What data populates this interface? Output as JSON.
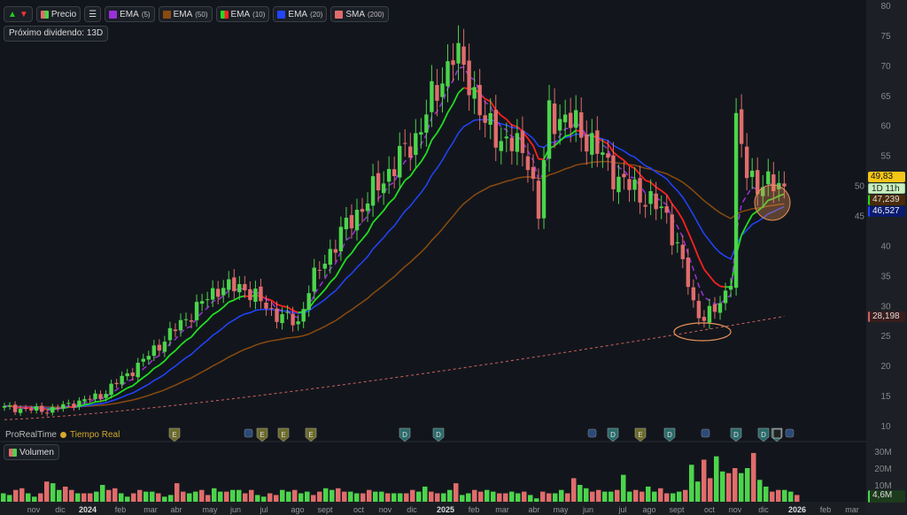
{
  "toolbar": {
    "precio": "Precio",
    "ema5": "EMA",
    "ema5_p": "(5)",
    "ema50": "EMA",
    "ema50_p": "(50)",
    "ema10": "EMA",
    "ema10_p": "(10)",
    "ema20": "EMA",
    "ema20_p": "(20)",
    "sma200": "SMA",
    "sma200_p": "(200)"
  },
  "dividend_badge": "Próximo dividendo: 13D",
  "provider": "ProRealTime",
  "realtime": "Tiempo Real",
  "volume_label": "Volumen",
  "price_tags": {
    "last": "49,83",
    "countdown": "1D 11h",
    "ema50": "47,239",
    "ema20": "46,527",
    "sma200": "28,198",
    "volume": "4,6M"
  },
  "colors": {
    "up": "#4cd44c",
    "down": "#e06c6c",
    "ema5": "#9b30d9",
    "ema10_up": "#22dd22",
    "ema10_down": "#ff2020",
    "ema20": "#2244ff",
    "ema50": "#8a4a10",
    "sma200": "#d06060"
  },
  "event_markers": [
    "E",
    "E",
    "D",
    "D",
    "E",
    "E",
    "D",
    "E",
    "D",
    "D",
    "D",
    "D",
    "D",
    "I"
  ],
  "chart_data": {
    "type": "candlestick",
    "y_axis": {
      "ticks": [
        80,
        75,
        70,
        65,
        60,
        55,
        50,
        45,
        40,
        35,
        30,
        25,
        20,
        15,
        10
      ],
      "range": [
        10,
        80
      ]
    },
    "volume_axis": {
      "ticks": [
        "30M",
        "20M",
        "10M"
      ],
      "range": [
        0,
        35
      ]
    },
    "x_ticks": [
      "nov",
      "dic",
      "2024",
      "feb",
      "mar",
      "abr",
      "may",
      "jun",
      "jul",
      "ago",
      "sept",
      "oct",
      "nov",
      "dic",
      "2025",
      "feb",
      "mar",
      "abr",
      "may",
      "jun",
      "jul",
      "ago",
      "sept",
      "oct",
      "nov",
      "dic",
      "2026",
      "feb",
      "mar"
    ],
    "price_anchors": [
      [
        0,
        13
      ],
      [
        8,
        12.5
      ],
      [
        18,
        15
      ],
      [
        25,
        20
      ],
      [
        33,
        27
      ],
      [
        40,
        33
      ],
      [
        45,
        33
      ],
      [
        50,
        29
      ],
      [
        55,
        27
      ],
      [
        57,
        33
      ],
      [
        63,
        42
      ],
      [
        70,
        50
      ],
      [
        77,
        58
      ],
      [
        82,
        68
      ],
      [
        84,
        72
      ],
      [
        87,
        68
      ],
      [
        90,
        60
      ],
      [
        93,
        58
      ],
      [
        98,
        55
      ],
      [
        100,
        45
      ],
      [
        102,
        62
      ],
      [
        107,
        60
      ],
      [
        110,
        57
      ],
      [
        115,
        51
      ],
      [
        120,
        48
      ],
      [
        124,
        45
      ],
      [
        127,
        37
      ],
      [
        129,
        30
      ],
      [
        131,
        28
      ],
      [
        134,
        30
      ],
      [
        136,
        35
      ],
      [
        137,
        60
      ],
      [
        139,
        52
      ],
      [
        142,
        50
      ],
      [
        144,
        50
      ],
      [
        146,
        49.83
      ]
    ],
    "sma200_range": [
      11,
      28.198
    ],
    "volume_millions": [
      5,
      4,
      7,
      8,
      5,
      3,
      5,
      12,
      11,
      7,
      9,
      7,
      5,
      5,
      5,
      6,
      10,
      7,
      8,
      5,
      3,
      5,
      7,
      6,
      6,
      5,
      3,
      4,
      11,
      6,
      5,
      6,
      7,
      4,
      8,
      6,
      6,
      7,
      7,
      5,
      7,
      4,
      3,
      5,
      4,
      7,
      6,
      7,
      5,
      6,
      4,
      6,
      8,
      7,
      8,
      6,
      6,
      5,
      5,
      7,
      6,
      6,
      5,
      5,
      5,
      5,
      7,
      6,
      9,
      6,
      5,
      5,
      7,
      11,
      4,
      5,
      7,
      6,
      7,
      6,
      5,
      5,
      6,
      5,
      6,
      4,
      2,
      6,
      5,
      5,
      7,
      5,
      14,
      10,
      8,
      6,
      7,
      6,
      6,
      7,
      16,
      6,
      7,
      6,
      9,
      6,
      8,
      5,
      5,
      6,
      7,
      22,
      12,
      25,
      14,
      27,
      18,
      17,
      20,
      17,
      20,
      29,
      13,
      9,
      6,
      7,
      7,
      6,
      4
    ],
    "latest_volume": "4,6M"
  }
}
